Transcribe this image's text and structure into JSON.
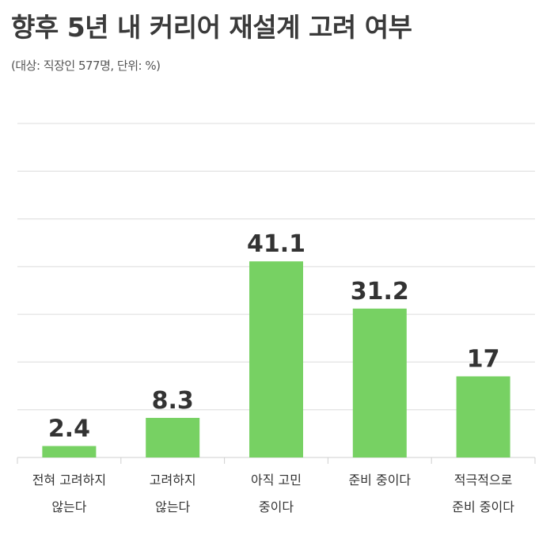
{
  "title": "향후 5년 내 커리어 재설계 고려 여부",
  "subtitle": "(대상: 직장인 577명, 단위: %)",
  "colors": {
    "bar": "#77d163",
    "grid": "#dcdcdc",
    "text": "#333333"
  },
  "chart_data": {
    "type": "bar",
    "categories": [
      [
        "전혀 고려하지",
        "않는다"
      ],
      [
        "고려하지",
        "않는다"
      ],
      [
        "아직 고민",
        "중이다"
      ],
      [
        "준비 중이다"
      ],
      [
        "적극적으로",
        "준비 중이다"
      ]
    ],
    "values": [
      2.4,
      8.3,
      41.1,
      31.2,
      17
    ],
    "value_labels": [
      "2.4",
      "8.3",
      "41.1",
      "31.2",
      "17"
    ],
    "ylim": [
      0,
      70
    ],
    "grid": true
  }
}
